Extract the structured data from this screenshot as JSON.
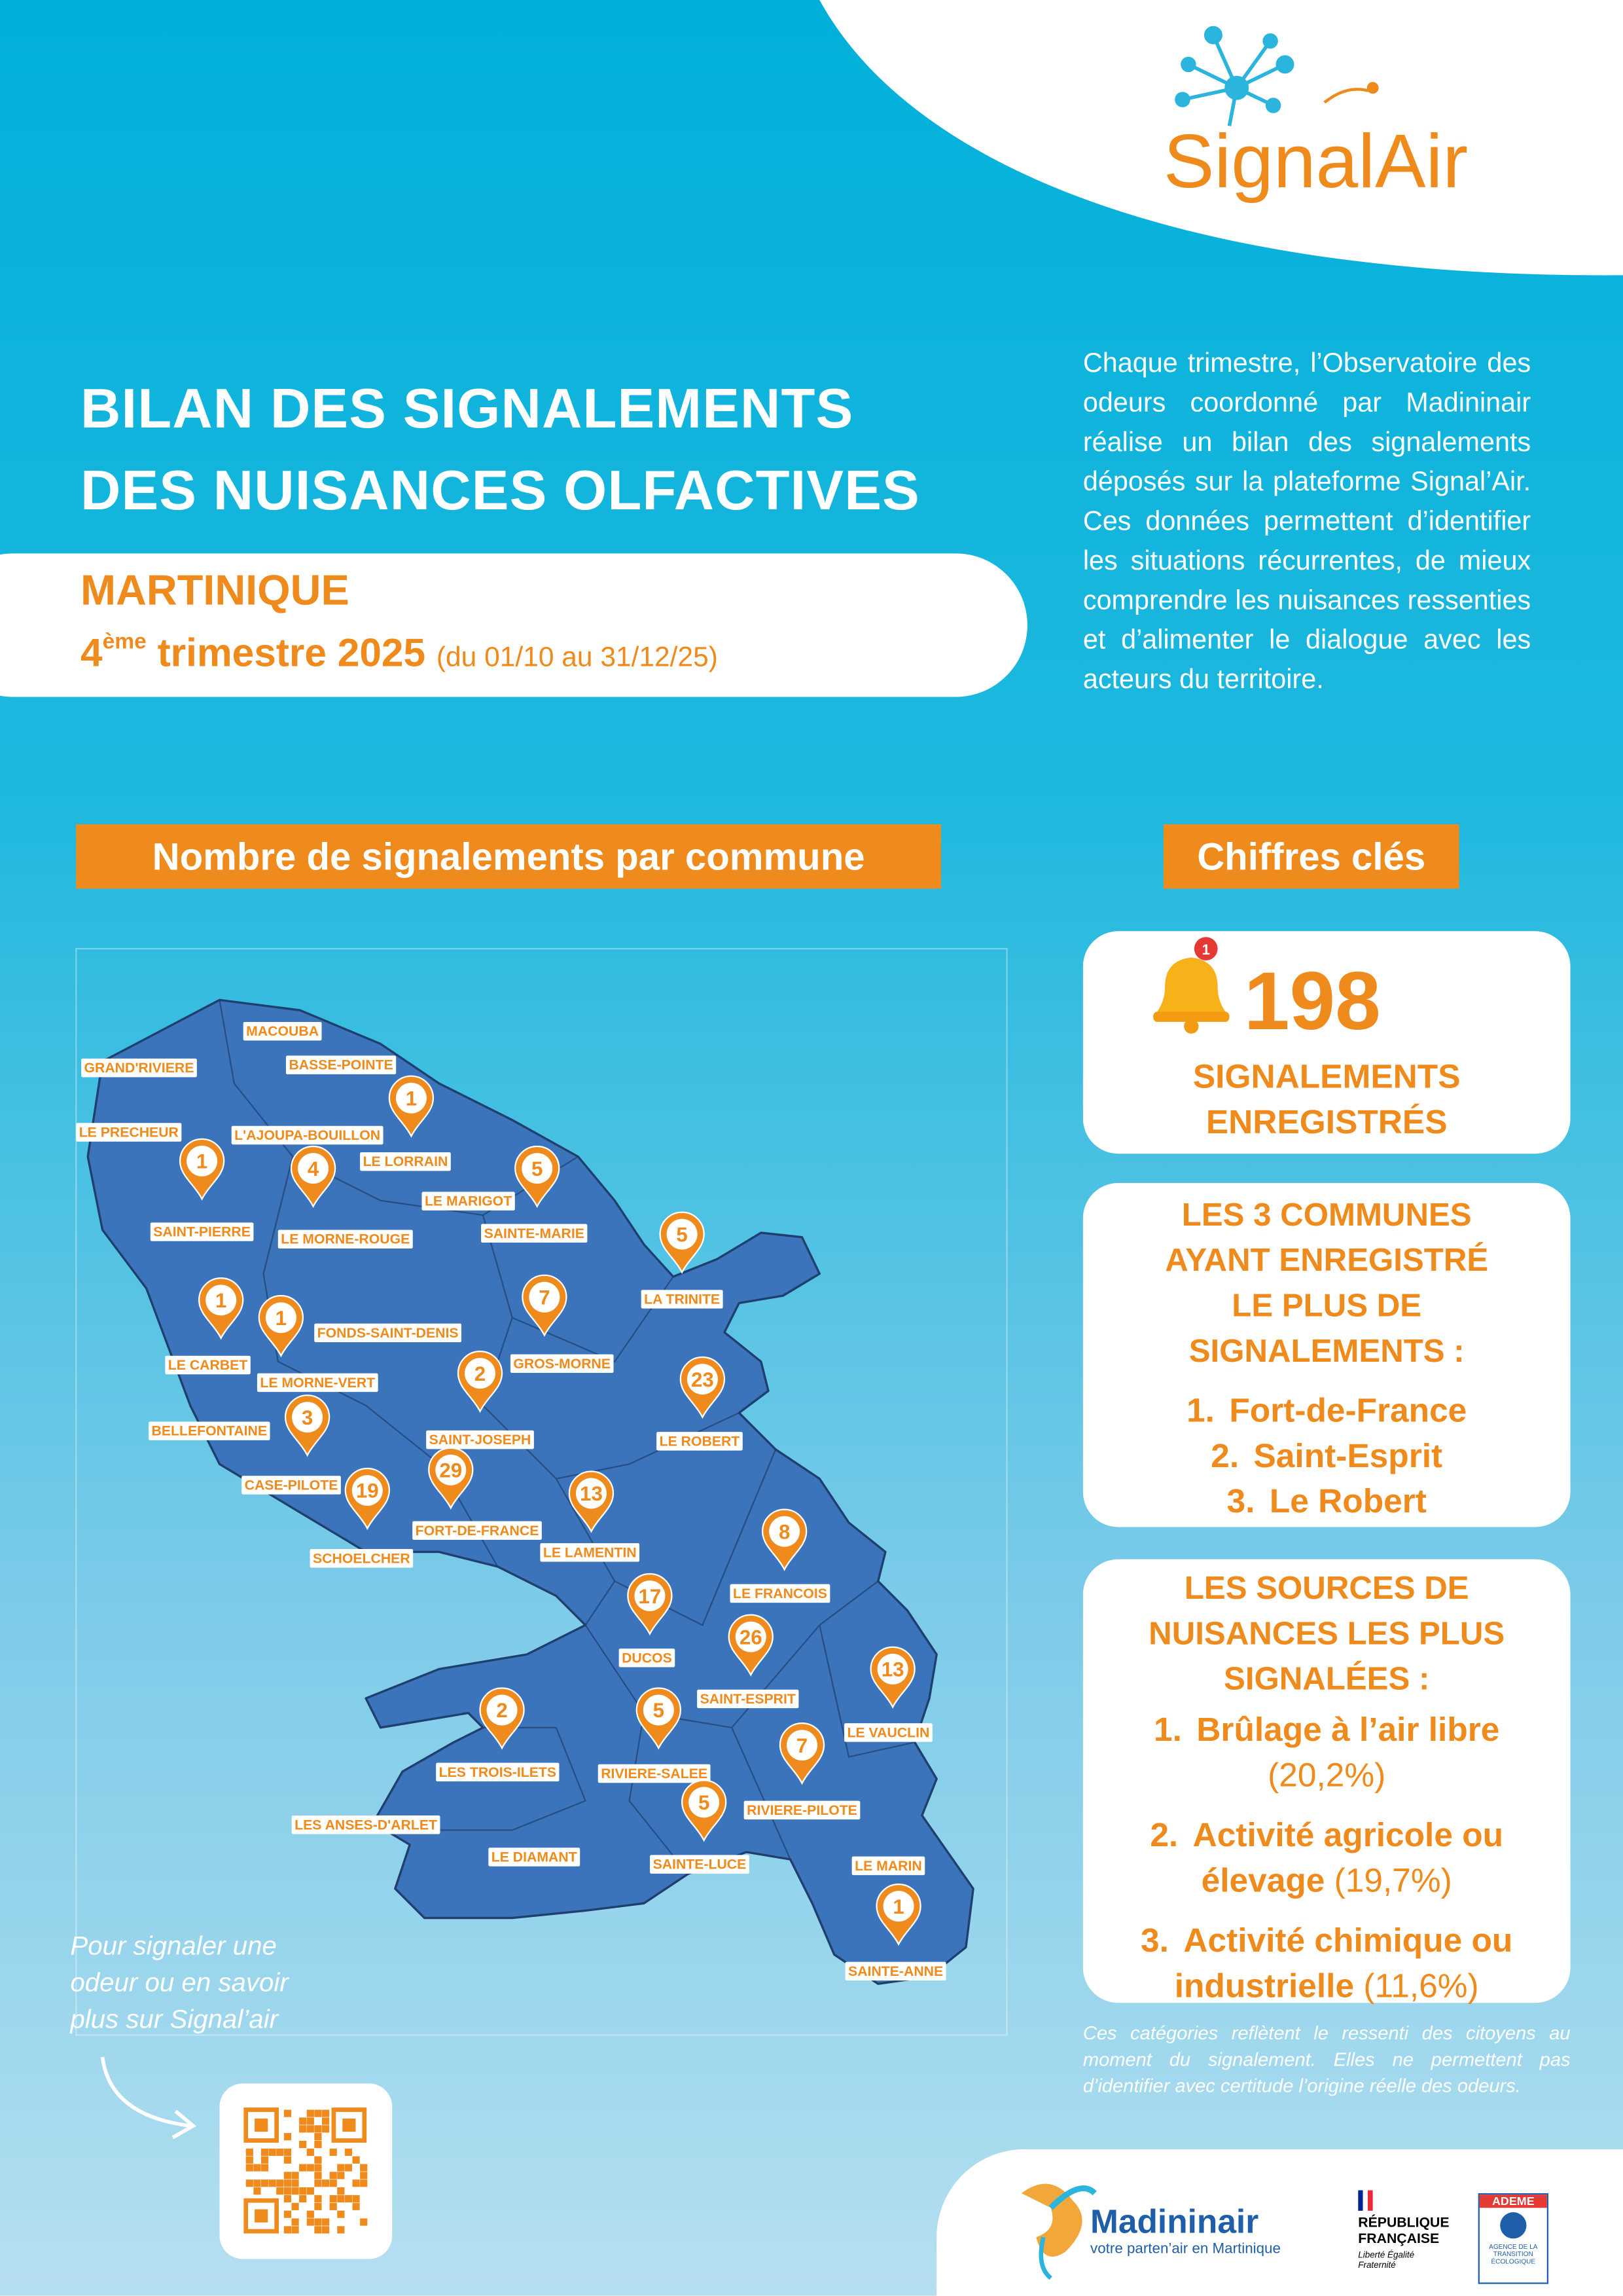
{
  "header": {
    "logo": "SignalAir",
    "title_lines": [
      "BILAN DES SIGNALEMENTS",
      "DES NUISANCES OLFACTIVES"
    ],
    "region": "MARTINIQUE",
    "quarter_number": "4",
    "quarter_suffix": "ème",
    "quarter_text": "trimestre 2025",
    "period": "(du 01/10 au 31/12/25)",
    "intro": "Chaque trimestre, l’Observatoire des odeurs coordonné par Madininair réalise un bilan des signalements déposés sur la plateforme Signal’Air. Ces données permettent d’identifier les situations récurrentes, de mieux comprendre les nuisances ressenties et d’alimenter le dialogue avec les acteurs du territoire."
  },
  "map": {
    "heading": "Nombre de signalements par commune",
    "communes": [
      {
        "name": "GRAND'RIVIERE"
      },
      {
        "name": "MACOUBA"
      },
      {
        "name": "BASSE-POINTE"
      },
      {
        "name": "LE PRECHEUR"
      },
      {
        "name": "L'AJOUPA-BOUILLON"
      },
      {
        "name": "LE LORRAIN",
        "count": 1
      },
      {
        "name": "SAINT-PIERRE",
        "count": 1
      },
      {
        "name": "LE MORNE-ROUGE",
        "count": 4
      },
      {
        "name": "LE MARIGOT"
      },
      {
        "name": "SAINTE-MARIE",
        "count": 5
      },
      {
        "name": "LA TRINITE",
        "count": 5
      },
      {
        "name": "FONDS-SAINT-DENIS"
      },
      {
        "name": "GROS-MORNE",
        "count": 7
      },
      {
        "name": "LE CARBET",
        "count": 1
      },
      {
        "name": "LE MORNE-VERT",
        "count": 1
      },
      {
        "name": "SAINT-JOSEPH",
        "count": 2
      },
      {
        "name": "LE ROBERT",
        "count": 23
      },
      {
        "name": "BELLEFONTAINE"
      },
      {
        "name": "CASE-PILOTE",
        "count": 3
      },
      {
        "name": "FORT-DE-FRANCE",
        "count": 29
      },
      {
        "name": "SCHOELCHER",
        "count": 19
      },
      {
        "name": "LE LAMENTIN",
        "count": 13
      },
      {
        "name": "LE FRANCOIS",
        "count": 8
      },
      {
        "name": "DUCOS",
        "count": 17
      },
      {
        "name": "SAINT-ESPRIT",
        "count": 26
      },
      {
        "name": "LE VAUCLIN",
        "count": 13
      },
      {
        "name": "LES TROIS-ILETS",
        "count": 2
      },
      {
        "name": "RIVIERE-SALEE",
        "count": 5
      },
      {
        "name": "RIVIERE-PILOTE",
        "count": 7
      },
      {
        "name": "LES ANSES-D'ARLET"
      },
      {
        "name": "LE DIAMANT"
      },
      {
        "name": "SAINTE-LUCE",
        "count": 5
      },
      {
        "name": "LE MARIN"
      },
      {
        "name": "SAINTE-ANNE",
        "count": 1
      }
    ]
  },
  "call_to_action": "Pour signaler une odeur ou en savoir plus sur Signal’air",
  "key_figures": {
    "heading": "Chiffres clés",
    "notification_badge": "1",
    "total": 198,
    "total_label_lines": [
      "SIGNALEMENTS",
      "ENREGISTRÉS"
    ],
    "top_communes": {
      "title_lines": [
        "LES 3 COMMUNES",
        "AYANT ENREGISTRÉ",
        "LE PLUS DE",
        "SIGNALEMENTS :"
      ],
      "items": [
        {
          "rank": "1.",
          "name": "Fort-de-France"
        },
        {
          "rank": "2.",
          "name": "Saint-Esprit"
        },
        {
          "rank": "3.",
          "name": "Le Robert"
        }
      ]
    },
    "top_sources": {
      "title_lines": [
        "LES SOURCES DE",
        "NUISANCES LES PLUS",
        "SIGNALÉES :"
      ],
      "items": [
        {
          "rank": "1.",
          "name": "Brûlage à l’air libre",
          "share": "(20,2%)"
        },
        {
          "rank": "2.",
          "name": "Activité agricole ou élevage",
          "share": "(19,7%)"
        },
        {
          "rank": "3.",
          "name": "Activité chimique ou industrielle",
          "share": "(11,6%)"
        }
      ]
    },
    "note": "Ces catégories reflètent le ressenti des citoyens au moment du signalement. Elles ne permettent pas d’identifier avec certitude l’origine réelle des odeurs."
  },
  "footer": {
    "madininair": "Madininair",
    "madininair_tagline": "votre parten’air en Martinique",
    "republique": "RÉPUBLIQUE FRANÇAISE",
    "devise": "Liberté Égalité Fraternité",
    "ademe": "ADEME",
    "ademe_tagline": "AGENCE DE LA TRANSITION ÉCOLOGIQUE"
  }
}
